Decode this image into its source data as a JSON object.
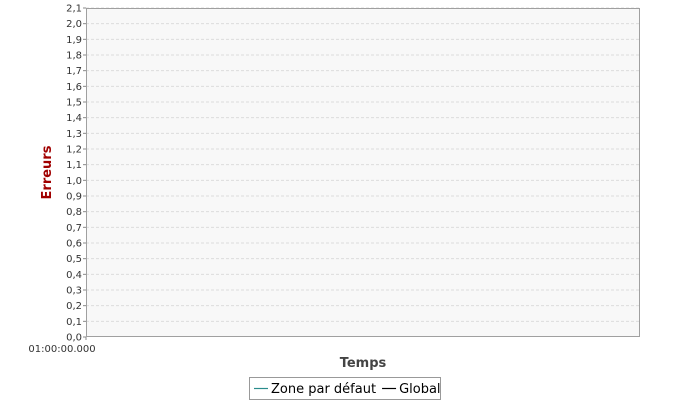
{
  "chart_data": {
    "type": "line",
    "title": "",
    "xlabel": "Temps",
    "ylabel": "Erreurs",
    "x_ticks": [
      "01:00:00.000"
    ],
    "y_ticks": [
      "0,0",
      "0,1",
      "0,2",
      "0,3",
      "0,4",
      "0,5",
      "0,6",
      "0,7",
      "0,8",
      "0,9",
      "1,0",
      "1,1",
      "1,2",
      "1,3",
      "1,4",
      "1,5",
      "1,6",
      "1,7",
      "1,8",
      "1,9",
      "2,0",
      "2,1"
    ],
    "ylim": [
      0,
      2.1
    ],
    "grid": true,
    "legend_position": "bottom",
    "series": [
      {
        "name": "Zone par défaut",
        "color": "#2a8c8c",
        "values": []
      },
      {
        "name": "Global",
        "color": "#000000",
        "values": []
      }
    ]
  },
  "colors": {
    "plot_background": "#f8f8f8",
    "gridline": "#dcdcdc",
    "ylabel_color": "#a00000",
    "xlabel_color": "#444444"
  }
}
